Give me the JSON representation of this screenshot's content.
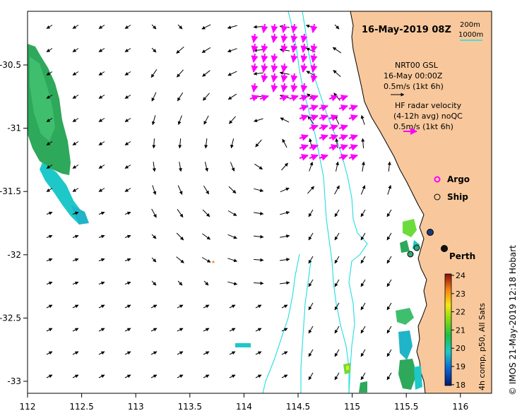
{
  "title": "16-May-2019 08Z",
  "isobath_legend": {
    "line1": "200m",
    "line2": "1000m"
  },
  "gsl_legend": {
    "line1": "NRT00 GSL",
    "line2": "16-May 00:00Z",
    "line3": "0.5m/s (1kt 6h)"
  },
  "hf_legend": {
    "line1": "HF radar velocity",
    "line2": "(4-12h avg) noQC",
    "line3": "0.5m/s (1kt 6h)"
  },
  "markers": {
    "argo": "Argo",
    "ship": "Ship"
  },
  "city": "Perth",
  "x_ticks": [
    "112",
    "112.5",
    "113",
    "113.5",
    "114",
    "114.5",
    "115",
    "115.5",
    "116"
  ],
  "y_ticks": [
    "-30.5",
    "-31",
    "-31.5",
    "-32",
    "-32.5",
    "-33"
  ],
  "colorbar": {
    "ticks": [
      "24",
      "23",
      "22",
      "21",
      "20",
      "19",
      "18"
    ],
    "label": "4h comp, p50, All Sats",
    "min": 18,
    "max": 24
  },
  "credit": "© IMOS 21-May-2019 12:18 Hobart",
  "colors": {
    "land": "#f8c89c",
    "isobath": "#22dde2",
    "gsl_arrow": "#000000",
    "hf_arrow": "#ff00ff",
    "ship_dot": "#1a3a7a",
    "coast_line": "#000000"
  }
}
